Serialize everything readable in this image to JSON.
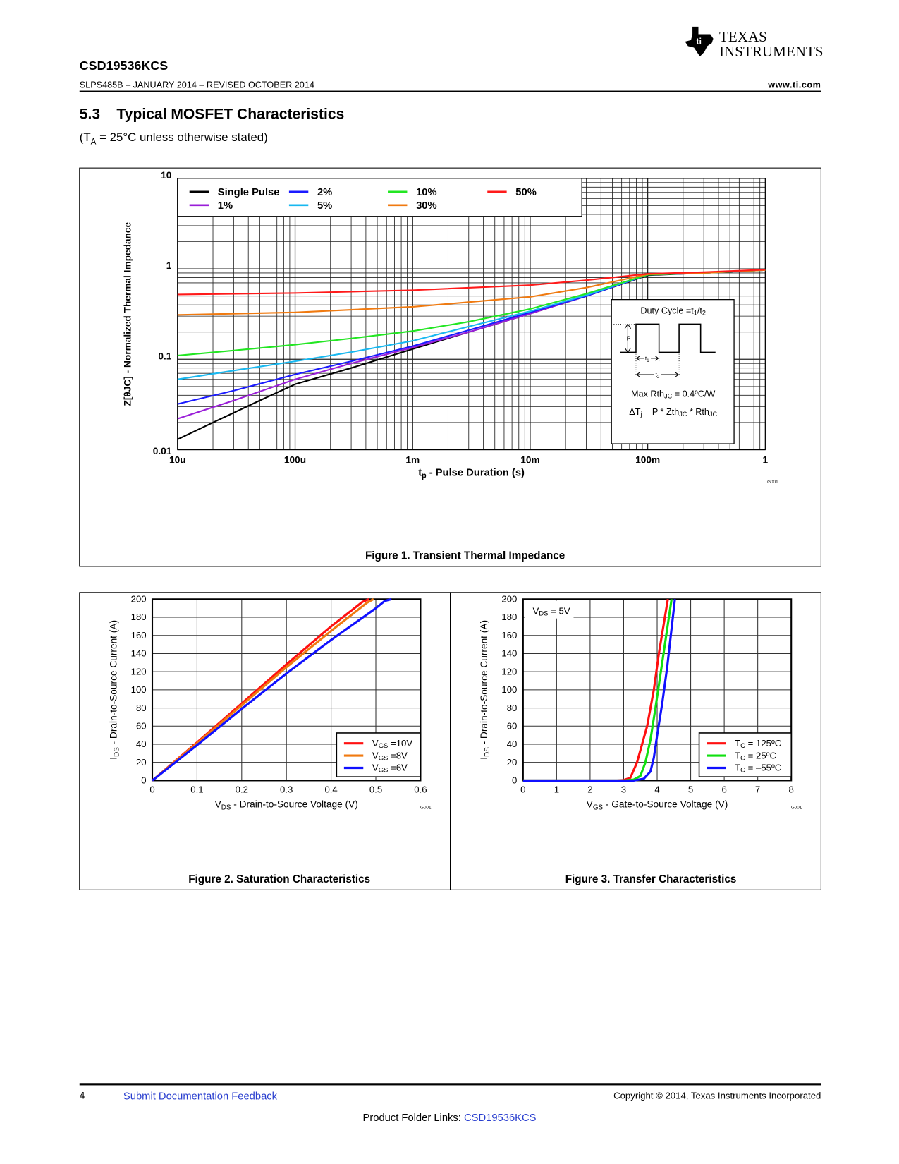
{
  "header": {
    "doc_id": "CSD19536KCS",
    "revision": "SLPS485B – JANUARY 2014 – REVISED OCTOBER 2014",
    "website": "www.ti.com",
    "logo_line1": "TEXAS",
    "logo_line2": "INSTRUMENTS"
  },
  "section": {
    "number": "5.3",
    "title": "Typical MOSFET Characteristics",
    "condition_pre": "(T",
    "condition_sub": "A",
    "condition_post": " = 25°C unless otherwise stated)"
  },
  "footer": {
    "page": "4",
    "feedback_link": "Submit Documentation Feedback",
    "copyright": "Copyright © 2014, Texas Instruments Incorporated",
    "folder_label": "Product Folder Links: ",
    "folder_link": "CSD19536KCS"
  },
  "colors": {
    "link": "#2a3fcf"
  },
  "chart_data": [
    {
      "type": "line",
      "id": "fig1",
      "caption": "Figure 1.  Transient Thermal Impedance",
      "code": "G001",
      "xscale": "log",
      "yscale": "log",
      "xlim": [
        1e-05,
        1
      ],
      "ylim": [
        0.01,
        10
      ],
      "grid": true,
      "legend": "top-left",
      "xlabel": [
        {
          "t": "t"
        },
        {
          "t": "p",
          "sub": true
        },
        {
          "t": " - Pulse Duration (s)"
        }
      ],
      "ylabel": [
        {
          "t": "Z[θJC] - Normalized Thermal Impedance"
        }
      ],
      "xticks": [
        {
          "v": 1e-05,
          "label": "10u"
        },
        {
          "v": 0.0001,
          "label": "100u"
        },
        {
          "v": 0.001,
          "label": "1m"
        },
        {
          "v": 0.01,
          "label": "10m"
        },
        {
          "v": 0.1,
          "label": "100m"
        },
        {
          "v": 1,
          "label": "1"
        }
      ],
      "yticks": [
        {
          "v": 10,
          "label": "10"
        },
        {
          "v": 1,
          "label": "1"
        },
        {
          "v": 0.1,
          "label": "0.1"
        },
        {
          "v": 0.01,
          "label": "0.01"
        }
      ],
      "series": [
        {
          "name": "Single Pulse",
          "color": "#000000",
          "x": [
            1e-05,
            2e-05,
            5e-05,
            0.0001,
            0.0003,
            0.001,
            0.003,
            0.01,
            0.03,
            0.1,
            0.3,
            1
          ],
          "y": [
            0.013,
            0.02,
            0.035,
            0.053,
            0.08,
            0.13,
            0.2,
            0.32,
            0.5,
            0.85,
            0.9,
            0.97
          ]
        },
        {
          "name": "1%",
          "color": "#9a1ed8",
          "x": [
            1e-05,
            3e-05,
            0.0001,
            0.0003,
            0.001,
            0.003,
            0.01,
            0.03,
            0.1,
            0.3,
            1
          ],
          "y": [
            0.022,
            0.035,
            0.06,
            0.09,
            0.135,
            0.2,
            0.32,
            0.5,
            0.86,
            0.9,
            0.97
          ]
        },
        {
          "name": "2%",
          "color": "#1a1aff",
          "x": [
            1e-05,
            3e-05,
            0.0001,
            0.0003,
            0.001,
            0.003,
            0.01,
            0.03,
            0.1,
            0.3,
            1
          ],
          "y": [
            0.032,
            0.045,
            0.068,
            0.095,
            0.14,
            0.21,
            0.33,
            0.5,
            0.86,
            0.9,
            0.97
          ]
        },
        {
          "name": "5%",
          "color": "#18b8f0",
          "x": [
            1e-05,
            3e-05,
            0.0001,
            0.0003,
            0.001,
            0.003,
            0.01,
            0.03,
            0.1,
            0.3,
            1
          ],
          "y": [
            0.06,
            0.075,
            0.095,
            0.12,
            0.16,
            0.23,
            0.34,
            0.51,
            0.86,
            0.9,
            0.97
          ]
        },
        {
          "name": "10%",
          "color": "#22e622",
          "x": [
            1e-05,
            3e-05,
            0.0001,
            0.0003,
            0.001,
            0.003,
            0.01,
            0.03,
            0.1,
            0.3,
            1
          ],
          "y": [
            0.11,
            0.125,
            0.145,
            0.17,
            0.205,
            0.26,
            0.36,
            0.53,
            0.86,
            0.9,
            0.97
          ]
        },
        {
          "name": "30%",
          "color": "#f07a10",
          "x": [
            1e-05,
            0.0001,
            0.001,
            0.01,
            0.03,
            0.1,
            0.3,
            1
          ],
          "y": [
            0.31,
            0.33,
            0.38,
            0.49,
            0.62,
            0.87,
            0.9,
            0.97
          ]
        },
        {
          "name": "50%",
          "color": "#ff1a1a",
          "x": [
            1e-05,
            0.0001,
            0.001,
            0.01,
            0.03,
            0.1,
            0.3,
            1
          ],
          "y": [
            0.52,
            0.54,
            0.58,
            0.66,
            0.75,
            0.88,
            0.92,
            0.98
          ]
        }
      ],
      "inset": {
        "title": [
          {
            "t": "Duty Cycle =t"
          },
          {
            "t": "1",
            "sub": true
          },
          {
            "t": "/t"
          },
          {
            "t": "2",
            "sub": true
          }
        ],
        "p_label": "P",
        "t1_label": [
          {
            "t": "t"
          },
          {
            "t": "1",
            "sub": true
          }
        ],
        "t2_label": [
          {
            "t": "t"
          },
          {
            "t": "2",
            "sub": true
          }
        ],
        "line1": [
          {
            "t": "Max Rth"
          },
          {
            "t": "JC",
            "sub": true
          },
          {
            "t": " = 0.4ºC/W"
          }
        ],
        "line2": [
          {
            "t": "ΔT"
          },
          {
            "t": "j",
            "sub": true
          },
          {
            "t": " = P * Zth"
          },
          {
            "t": "JC",
            "sub": true
          },
          {
            "t": " * Rth"
          },
          {
            "t": "JC",
            "sub": true
          }
        ]
      }
    },
    {
      "type": "line",
      "id": "fig2",
      "caption": "Figure 2. Saturation Characteristics",
      "code": "G001",
      "xlim": [
        0,
        0.6
      ],
      "ylim": [
        0,
        200
      ],
      "grid": true,
      "legend": "bottom-right",
      "xlabel": [
        {
          "t": "V"
        },
        {
          "t": "DS",
          "sub": true
        },
        {
          "t": " - Drain-to-Source Voltage (V)"
        }
      ],
      "ylabel": [
        {
          "t": "I"
        },
        {
          "t": "DS",
          "sub": true
        },
        {
          "t": " - Drain-to-Source Current (A)"
        }
      ],
      "xticks": [
        {
          "v": 0,
          "label": "0"
        },
        {
          "v": 0.1,
          "label": "0.1"
        },
        {
          "v": 0.2,
          "label": "0.2"
        },
        {
          "v": 0.3,
          "label": "0.3"
        },
        {
          "v": 0.4,
          "label": "0.4"
        },
        {
          "v": 0.5,
          "label": "0.5"
        },
        {
          "v": 0.6,
          "label": "0.6"
        }
      ],
      "yticks": [
        {
          "v": 0,
          "label": "0"
        },
        {
          "v": 20,
          "label": "20"
        },
        {
          "v": 40,
          "label": "40"
        },
        {
          "v": 60,
          "label": "60"
        },
        {
          "v": 80,
          "label": "80"
        },
        {
          "v": 100,
          "label": "100"
        },
        {
          "v": 120,
          "label": "120"
        },
        {
          "v": 140,
          "label": "140"
        },
        {
          "v": 160,
          "label": "160"
        },
        {
          "v": 180,
          "label": "180"
        },
        {
          "v": 200,
          "label": "200"
        }
      ],
      "series": [
        {
          "name": [
            {
              "t": "V"
            },
            {
              "t": "GS",
              "sub": true
            },
            {
              "t": " =10V"
            }
          ],
          "color": "#ff1010",
          "x": [
            0,
            0.1,
            0.2,
            0.3,
            0.4,
            0.47,
            0.485
          ],
          "y": [
            0,
            42,
            85,
            128,
            170,
            197,
            200
          ]
        },
        {
          "name": [
            {
              "t": "V"
            },
            {
              "t": "GS",
              "sub": true
            },
            {
              "t": " =8V"
            }
          ],
          "color": "#f07a10",
          "x": [
            0,
            0.1,
            0.2,
            0.3,
            0.4,
            0.48,
            0.495
          ],
          "y": [
            0,
            41,
            83,
            125,
            165,
            196,
            200
          ]
        },
        {
          "name": [
            {
              "t": "V"
            },
            {
              "t": "GS",
              "sub": true
            },
            {
              "t": " =6V"
            }
          ],
          "color": "#1010ff",
          "x": [
            0,
            0.1,
            0.2,
            0.3,
            0.4,
            0.5,
            0.52,
            0.535
          ],
          "y": [
            0,
            39,
            79,
            118,
            155,
            190,
            198,
            200
          ]
        }
      ]
    },
    {
      "type": "line",
      "id": "fig3",
      "caption": "Figure 3. Transfer Characteristics",
      "code": "G001",
      "xlim": [
        0,
        8
      ],
      "ylim": [
        0,
        200
      ],
      "grid": true,
      "legend": "bottom-right",
      "annotation": [
        {
          "t": "V"
        },
        {
          "t": "DS",
          "sub": true
        },
        {
          "t": " = 5V"
        }
      ],
      "xlabel": [
        {
          "t": "V"
        },
        {
          "t": "GS",
          "sub": true
        },
        {
          "t": " - Gate-to-Source Voltage (V)"
        }
      ],
      "ylabel": [
        {
          "t": "I"
        },
        {
          "t": "DS",
          "sub": true
        },
        {
          "t": " - Drain-to-Source Current  (A)"
        }
      ],
      "xticks": [
        {
          "v": 0,
          "label": "0"
        },
        {
          "v": 1,
          "label": "1"
        },
        {
          "v": 2,
          "label": "2"
        },
        {
          "v": 3,
          "label": "3"
        },
        {
          "v": 4,
          "label": "4"
        },
        {
          "v": 5,
          "label": "5"
        },
        {
          "v": 6,
          "label": "6"
        },
        {
          "v": 7,
          "label": "7"
        },
        {
          "v": 8,
          "label": "8"
        }
      ],
      "yticks": [
        {
          "v": 0,
          "label": "0"
        },
        {
          "v": 20,
          "label": "20"
        },
        {
          "v": 40,
          "label": "40"
        },
        {
          "v": 60,
          "label": "60"
        },
        {
          "v": 80,
          "label": "80"
        },
        {
          "v": 100,
          "label": "100"
        },
        {
          "v": 120,
          "label": "120"
        },
        {
          "v": 140,
          "label": "140"
        },
        {
          "v": 160,
          "label": "160"
        },
        {
          "v": 180,
          "label": "180"
        },
        {
          "v": 200,
          "label": "200"
        }
      ],
      "series": [
        {
          "name": [
            {
              "t": "T"
            },
            {
              "t": "C",
              "sub": true
            },
            {
              "t": " = 125ºC"
            }
          ],
          "color": "#ff1010",
          "x": [
            0,
            2.8,
            3.0,
            3.2,
            3.4,
            3.55,
            3.7,
            3.9,
            4.05,
            4.32
          ],
          "y": [
            0,
            0,
            0.5,
            3,
            20,
            40,
            60,
            100,
            140,
            200
          ]
        },
        {
          "name": [
            {
              "t": "T"
            },
            {
              "t": "C",
              "sub": true
            },
            {
              "t": " = 25ºC"
            }
          ],
          "color": "#10e010",
          "x": [
            0,
            3.0,
            3.3,
            3.5,
            3.65,
            3.8,
            3.95,
            4.15,
            4.43
          ],
          "y": [
            0,
            0,
            1,
            5,
            20,
            45,
            80,
            130,
            200
          ]
        },
        {
          "name": [
            {
              "t": "T"
            },
            {
              "t": "C",
              "sub": true
            },
            {
              "t": " = –55ºC"
            }
          ],
          "color": "#1010ff",
          "x": [
            0,
            3.3,
            3.6,
            3.8,
            3.9,
            4.0,
            4.15,
            4.3,
            4.53
          ],
          "y": [
            0,
            0,
            2,
            10,
            25,
            50,
            85,
            125,
            200
          ]
        }
      ]
    }
  ]
}
